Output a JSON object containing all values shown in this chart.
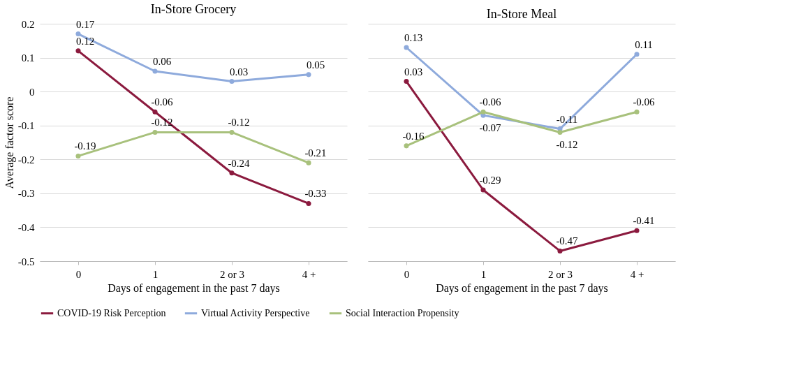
{
  "chart_data": [
    {
      "type": "line",
      "title": "In-Store Grocery",
      "xlabel": "Days of engagement in the past 7 days",
      "ylabel": "Average factor score",
      "categories": [
        "0",
        "1",
        "2 or 3",
        "4 +"
      ],
      "series": [
        {
          "name": "COVID-19 Risk Perception",
          "color": "#8b1a3e",
          "values": [
            0.12,
            -0.06,
            -0.24,
            -0.33
          ]
        },
        {
          "name": "Virtual Activity Perspective",
          "color": "#8eaadc",
          "values": [
            0.17,
            0.06,
            0.03,
            0.05
          ]
        },
        {
          "name": "Social Interaction Propensity",
          "color": "#a8c17c",
          "values": [
            -0.19,
            -0.12,
            -0.12,
            -0.21
          ]
        }
      ],
      "ylim": [
        -0.5,
        0.2
      ],
      "yticks": [
        -0.5,
        -0.4,
        -0.3,
        -0.2,
        -0.1,
        0,
        0.1,
        0.2
      ],
      "grid": "y",
      "legend": "bottom",
      "marker": "circle",
      "line_style": "solid",
      "data_labels": true
    },
    {
      "type": "line",
      "title": "In-Store Meal",
      "xlabel": "Days of engagement in the past 7 days",
      "categories": [
        "0",
        "1",
        "2 or 3",
        "4 +"
      ],
      "series": [
        {
          "name": "COVID-19 Risk Perception",
          "color": "#8b1a3e",
          "values": [
            0.03,
            -0.29,
            -0.47,
            -0.41
          ]
        },
        {
          "name": "Virtual Activity Perspective",
          "color": "#8eaadc",
          "values": [
            0.13,
            -0.07,
            -0.11,
            0.11
          ]
        },
        {
          "name": "Social Interaction Propensity",
          "color": "#a8c17c",
          "values": [
            -0.16,
            -0.06,
            -0.12,
            -0.06
          ]
        }
      ],
      "ylim": [
        -0.5,
        0.2
      ],
      "yticks": [
        -0.5,
        -0.4,
        -0.3,
        -0.2,
        -0.1,
        0,
        0.1,
        0.2
      ],
      "grid": "y",
      "legend": "bottom",
      "marker": "circle",
      "line_style": "solid",
      "data_labels": true,
      "tick_labels": "x"
    }
  ]
}
